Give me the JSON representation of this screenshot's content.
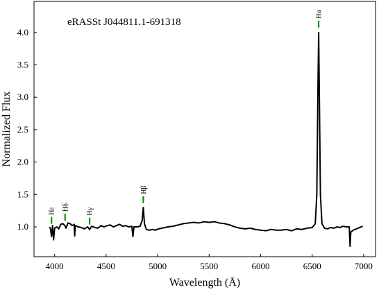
{
  "chart_data": {
    "type": "line",
    "title": "eRASSt J044811.1-691318",
    "xlabel": "Wavelength (Å)",
    "ylabel": "Normalized Flux",
    "color": "#000000",
    "xlim": [
      3800,
      7115
    ],
    "ylim": [
      0.54,
      4.48
    ],
    "xticks": [
      4000,
      4500,
      5000,
      5500,
      6000,
      6500,
      7000
    ],
    "yticks": [
      {
        "value": 1.0,
        "label": "1.0"
      },
      {
        "value": 1.5,
        "label": "1.5"
      },
      {
        "value": 2.0,
        "label": "2.0"
      },
      {
        "value": 2.5,
        "label": "2.5"
      },
      {
        "value": 3.0,
        "label": "3.0"
      },
      {
        "value": 3.5,
        "label": "3.5"
      },
      {
        "value": 4.0,
        "label": "4.0"
      }
    ],
    "grid": false,
    "annotation_color": "#008000",
    "annotations": [
      {
        "label": "Hε",
        "x": 3970,
        "y": 1.1
      },
      {
        "label": "Hδ",
        "x": 4102,
        "y": 1.15
      },
      {
        "label": "Hγ",
        "x": 4340,
        "y": 1.09
      },
      {
        "label": "Hβ",
        "x": 4861,
        "y": 1.42
      },
      {
        "label": "Hα",
        "x": 6563,
        "y": 4.13
      }
    ],
    "x": [
      3950,
      3960,
      3970,
      3980,
      3990,
      4000,
      4020,
      4040,
      4060,
      4080,
      4100,
      4110,
      4130,
      4150,
      4170,
      4190,
      4195,
      4200,
      4230,
      4260,
      4290,
      4320,
      4340,
      4360,
      4390,
      4420,
      4450,
      4480,
      4510,
      4540,
      4570,
      4600,
      4630,
      4660,
      4690,
      4720,
      4750,
      4760,
      4770,
      4800,
      4830,
      4850,
      4861,
      4872,
      4890,
      4920,
      4950,
      4980,
      5010,
      5040,
      5070,
      5100,
      5150,
      5200,
      5250,
      5300,
      5350,
      5400,
      5450,
      5500,
      5550,
      5600,
      5650,
      5700,
      5750,
      5800,
      5850,
      5900,
      5950,
      6000,
      6050,
      6100,
      6150,
      6200,
      6250,
      6300,
      6350,
      6400,
      6450,
      6500,
      6530,
      6545,
      6555,
      6563,
      6570,
      6580,
      6595,
      6620,
      6650,
      6680,
      6710,
      6740,
      6770,
      6800,
      6830,
      6860,
      6868,
      6875,
      6900,
      6930,
      6960,
      6990
    ],
    "values": [
      1.0,
      0.97,
      0.85,
      1.02,
      0.8,
      0.98,
      1.0,
      0.97,
      1.04,
      1.05,
      1.02,
      0.98,
      1.06,
      1.05,
      1.02,
      1.04,
      0.86,
      1.02,
      1.0,
      0.99,
      0.97,
      1.0,
      0.96,
      1.01,
      0.99,
      0.98,
      1.02,
      1.0,
      1.02,
      1.03,
      1.0,
      1.02,
      1.04,
      1.01,
      1.02,
      1.0,
      1.01,
      0.85,
      1.0,
      1.0,
      1.01,
      1.1,
      1.3,
      1.05,
      0.96,
      0.95,
      0.96,
      0.95,
      0.97,
      0.98,
      0.99,
      1.0,
      1.01,
      1.03,
      1.05,
      1.06,
      1.07,
      1.06,
      1.08,
      1.07,
      1.08,
      1.06,
      1.05,
      1.03,
      1.0,
      0.98,
      0.97,
      0.98,
      0.96,
      0.95,
      0.94,
      0.96,
      0.95,
      0.95,
      0.96,
      0.94,
      0.97,
      0.96,
      0.98,
      0.99,
      1.05,
      1.5,
      3.0,
      4.0,
      3.0,
      1.5,
      1.05,
      0.98,
      0.97,
      0.99,
      0.98,
      1.0,
      0.99,
      1.01,
      1.0,
      1.0,
      0.7,
      0.92,
      0.95,
      0.97,
      0.99,
      1.01
    ]
  }
}
